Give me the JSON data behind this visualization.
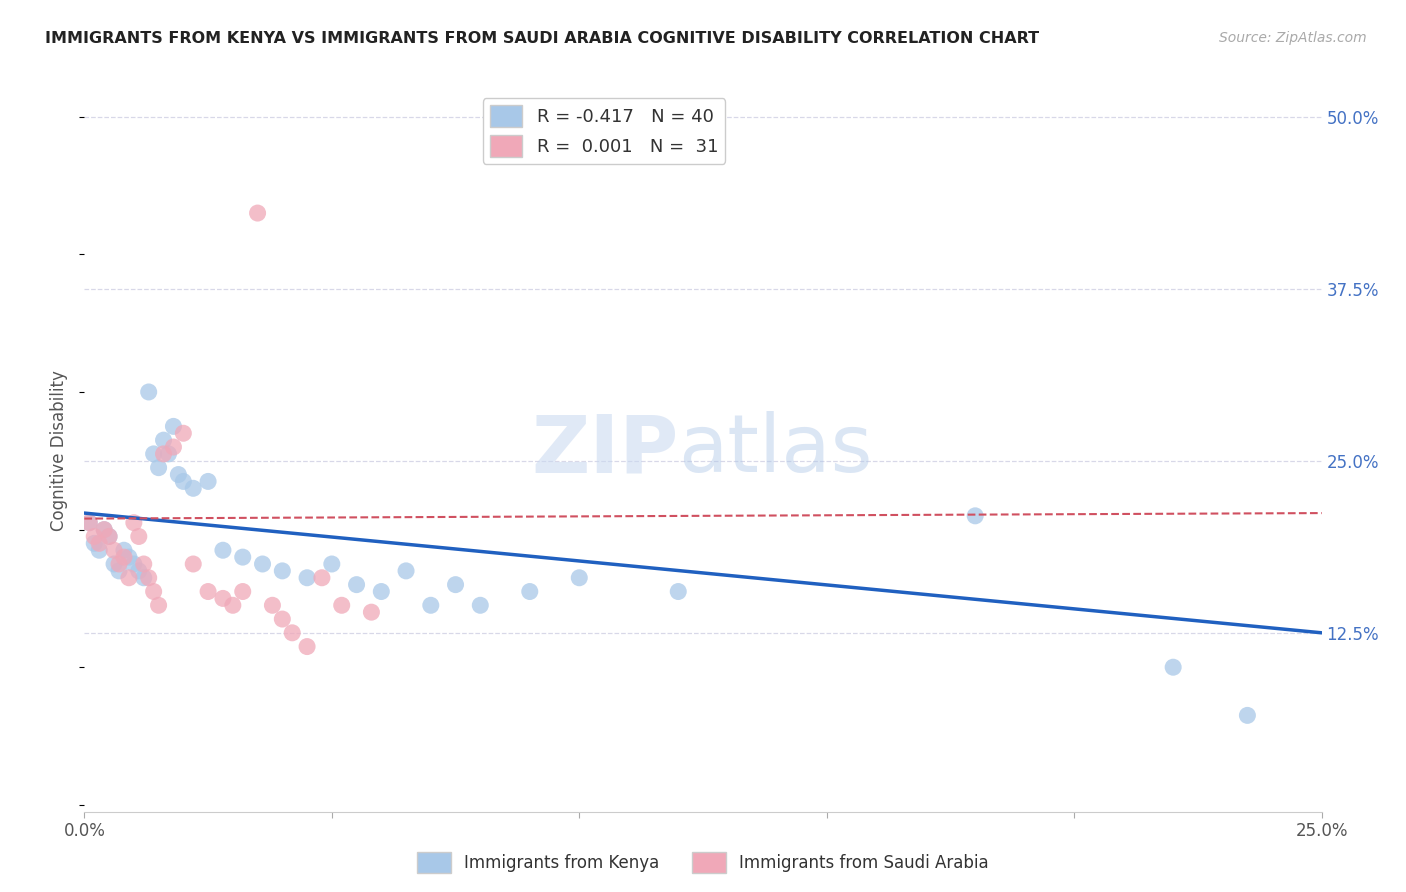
{
  "title": "IMMIGRANTS FROM KENYA VS IMMIGRANTS FROM SAUDI ARABIA COGNITIVE DISABILITY CORRELATION CHART",
  "source": "Source: ZipAtlas.com",
  "ylabel": "Cognitive Disability",
  "ytick_values": [
    0.125,
    0.25,
    0.375,
    0.5
  ],
  "ytick_labels": [
    "12.5%",
    "25.0%",
    "37.5%",
    "50.0%"
  ],
  "xlim": [
    0.0,
    0.25
  ],
  "ylim": [
    -0.005,
    0.52
  ],
  "kenya_R": -0.417,
  "kenya_N": 40,
  "saudi_R": 0.001,
  "saudi_N": 31,
  "kenya_color": "#a8c8e8",
  "saudi_color": "#f0a8b8",
  "kenya_line_color": "#2060c0",
  "saudi_line_color": "#d05060",
  "background_color": "#ffffff",
  "grid_color": "#d8d8e8",
  "watermark_zip": "ZIP",
  "watermark_atlas": "atlas",
  "legend_kenya": "Immigrants from Kenya",
  "legend_saudi": "Immigrants from Saudi Arabia",
  "kenya_x": [
    0.001,
    0.002,
    0.003,
    0.004,
    0.005,
    0.006,
    0.007,
    0.008,
    0.009,
    0.01,
    0.011,
    0.012,
    0.013,
    0.014,
    0.015,
    0.016,
    0.017,
    0.018,
    0.019,
    0.02,
    0.022,
    0.025,
    0.028,
    0.032,
    0.036,
    0.04,
    0.045,
    0.05,
    0.055,
    0.06,
    0.065,
    0.07,
    0.075,
    0.08,
    0.09,
    0.1,
    0.12,
    0.18,
    0.22,
    0.235
  ],
  "kenya_y": [
    0.205,
    0.19,
    0.185,
    0.2,
    0.195,
    0.175,
    0.17,
    0.185,
    0.18,
    0.175,
    0.17,
    0.165,
    0.3,
    0.255,
    0.245,
    0.265,
    0.255,
    0.275,
    0.24,
    0.235,
    0.23,
    0.235,
    0.185,
    0.18,
    0.175,
    0.17,
    0.165,
    0.175,
    0.16,
    0.155,
    0.17,
    0.145,
    0.16,
    0.145,
    0.155,
    0.165,
    0.155,
    0.21,
    0.1,
    0.065
  ],
  "saudi_x": [
    0.001,
    0.002,
    0.003,
    0.004,
    0.005,
    0.006,
    0.007,
    0.008,
    0.009,
    0.01,
    0.011,
    0.012,
    0.013,
    0.014,
    0.015,
    0.016,
    0.018,
    0.02,
    0.022,
    0.025,
    0.028,
    0.03,
    0.032,
    0.035,
    0.038,
    0.04,
    0.042,
    0.045,
    0.048,
    0.052,
    0.058
  ],
  "saudi_y": [
    0.205,
    0.195,
    0.19,
    0.2,
    0.195,
    0.185,
    0.175,
    0.18,
    0.165,
    0.205,
    0.195,
    0.175,
    0.165,
    0.155,
    0.145,
    0.255,
    0.26,
    0.27,
    0.175,
    0.155,
    0.15,
    0.145,
    0.155,
    0.43,
    0.145,
    0.135,
    0.125,
    0.115,
    0.165,
    0.145,
    0.14
  ],
  "kenya_line_x": [
    0.0,
    0.25
  ],
  "kenya_line_y": [
    0.212,
    0.125
  ],
  "saudi_line_x": [
    0.0,
    0.25
  ],
  "saudi_line_y": [
    0.208,
    0.212
  ]
}
